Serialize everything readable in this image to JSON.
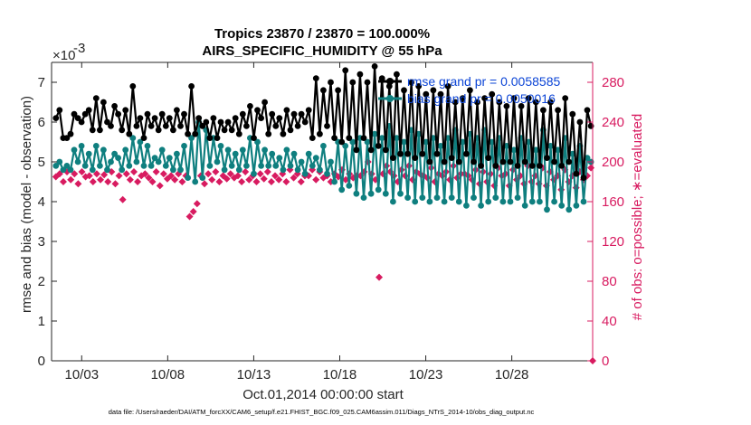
{
  "chart_data": {
    "type": "line",
    "title": "Tropics 23870 / 23870 = 100.000%",
    "subtitle": "AIRS_SPECIFIC_HUMIDITY @ 55 hPa",
    "xlabel": "Oct.01,2014 00:00:00 start",
    "ylabel": "rmse and bias (model - observation)",
    "y2label": "# of obs: o=possible; ∗=evaluated",
    "y_exponent": "×10",
    "y_exponent_power": "-3",
    "x_ticks": [
      "10/03",
      "10/08",
      "10/13",
      "10/18",
      "10/23",
      "10/28"
    ],
    "x_tick_values": [
      3,
      8,
      13,
      18,
      23,
      28
    ],
    "xlim": [
      1.25,
      32.7
    ],
    "y_ticks": [
      "0",
      "1",
      "2",
      "3",
      "4",
      "5",
      "6",
      "7"
    ],
    "ylim": [
      0,
      7.5
    ],
    "y2_ticks": [
      "0",
      "40",
      "80",
      "120",
      "160",
      "200",
      "240",
      "280"
    ],
    "y2lim": [
      0,
      300
    ],
    "grid": false,
    "legend_position": "top-right",
    "footnote": "data file: /Users/raeder/DAI/ATM_forcXX/CAM6_setup/f.e21.FHIST_BGC.f09_025.CAM6assim.011/Diags_NTrS_2014-10/obs_diag_output.nc",
    "series": [
      {
        "name": "rmse",
        "legend": "rmse grand pr = 0.0058585",
        "color": "#000000",
        "axis": "left",
        "values": [
          6.1,
          6.3,
          5.6,
          5.6,
          5.7,
          6.2,
          6.1,
          6.0,
          6.2,
          6.3,
          5.8,
          6.6,
          5.8,
          6.5,
          6.0,
          5.9,
          6.4,
          6.2,
          5.8,
          6.3,
          5.7,
          6.9,
          5.9,
          6.1,
          5.6,
          6.2,
          5.9,
          6.1,
          5.8,
          6.2,
          5.9,
          6.1,
          5.8,
          6.3,
          5.9,
          6.2,
          5.7,
          6.9,
          5.7,
          6.1,
          5.9,
          6.0,
          5.6,
          6.1,
          5.6,
          6.0,
          5.8,
          6.0,
          5.8,
          6.1,
          5.7,
          6.2,
          5.9,
          6.4,
          5.6,
          6.3,
          6.1,
          6.5,
          5.7,
          6.2,
          5.9,
          6.1,
          5.7,
          6.3,
          5.8,
          6.2,
          5.9,
          6.2,
          6.0,
          6.3,
          5.6,
          7.1,
          5.7,
          6.8,
          5.9,
          7.0,
          5.6,
          6.8,
          5.5,
          7.3,
          5.6,
          7.0,
          5.3,
          7.2,
          5.6,
          7.0,
          5.3,
          7.4,
          5.4,
          7.1,
          5.3,
          6.9,
          5.1,
          7.2,
          5.2,
          6.8,
          5.2,
          7.0,
          5.1,
          6.9,
          5.2,
          6.7,
          5.0,
          6.8,
          5.2,
          6.7,
          5.0,
          6.9,
          5.1,
          6.5,
          5.0,
          6.6,
          5.2,
          6.8,
          5.0,
          6.5,
          4.9,
          6.6,
          5.1,
          6.7,
          4.9,
          6.5,
          5.0,
          6.4,
          5.0,
          6.6,
          4.9,
          6.4,
          5.0,
          6.6,
          4.9,
          6.5,
          4.9,
          6.3,
          5.1,
          6.5,
          5.0,
          6.3,
          4.9,
          6.6,
          5.0,
          6.2,
          4.7,
          6.0,
          4.6,
          6.3,
          5.9
        ]
      },
      {
        "name": "bias",
        "legend": "bias grand pr = 0.0050016",
        "color": "#0f7f7f",
        "axis": "left",
        "values": [
          4.9,
          5.0,
          4.8,
          4.9,
          4.8,
          5.3,
          5.0,
          5.4,
          4.9,
          5.2,
          4.8,
          5.4,
          4.9,
          5.3,
          4.8,
          5.0,
          5.2,
          5.1,
          4.8,
          5.3,
          4.9,
          5.6,
          5.0,
          5.5,
          4.9,
          5.4,
          4.9,
          5.1,
          5.0,
          5.3,
          4.9,
          5.1,
          4.8,
          5.2,
          4.8,
          5.4,
          4.6,
          5.6,
          4.5,
          6.0,
          4.6,
          5.8,
          4.9,
          5.6,
          5.0,
          5.4,
          4.8,
          5.3,
          4.9,
          5.2,
          4.8,
          5.3,
          4.9,
          5.6,
          4.7,
          5.5,
          4.9,
          5.3,
          4.9,
          5.2,
          4.9,
          5.1,
          4.8,
          5.3,
          4.9,
          5.2,
          4.8,
          5.0,
          4.7,
          5.2,
          4.9,
          5.1,
          4.8,
          5.4,
          4.7,
          5.0,
          4.5,
          5.5,
          4.3,
          5.4,
          4.4,
          5.5,
          4.2,
          5.6,
          4.1,
          5.5,
          4.2,
          5.7,
          4.3,
          5.6,
          4.2,
          5.9,
          4.0,
          5.6,
          4.2,
          5.5,
          4.1,
          5.8,
          4.0,
          5.7,
          4.1,
          5.5,
          4.0,
          5.6,
          4.1,
          5.4,
          4.0,
          5.6,
          4.1,
          5.8,
          4.0,
          5.5,
          3.9,
          5.7,
          4.1,
          5.6,
          3.9,
          5.8,
          4.0,
          5.5,
          4.1,
          5.6,
          4.0,
          5.4,
          4.0,
          5.3,
          4.1,
          5.6,
          3.9,
          5.5,
          4.0,
          5.3,
          4.0,
          5.8,
          3.8,
          5.4,
          4.0,
          5.3,
          3.9,
          5.6,
          3.8,
          5.2,
          3.9,
          5.4,
          4.0,
          5.1,
          5.0
        ]
      },
      {
        "name": "# of obs (evaluated)",
        "color": "#d81b60",
        "axis": "right",
        "values": [
          185,
          188,
          180,
          190,
          182,
          188,
          178,
          190,
          185,
          186,
          180,
          188,
          182,
          187,
          180,
          190,
          178,
          186,
          162,
          188,
          182,
          190,
          180,
          186,
          188,
          184,
          180,
          190,
          176,
          188,
          183,
          186,
          182,
          188,
          180,
          186,
          145,
          150,
          158,
          186,
          178,
          188,
          182,
          190,
          180,
          186,
          183,
          188,
          184,
          186,
          180,
          190,
          182,
          186,
          180,
          188,
          183,
          190,
          180,
          186,
          182,
          188,
          180,
          192,
          184,
          188,
          180,
          186,
          186,
          192,
          182,
          190,
          184,
          186,
          180,
          188,
          185,
          192,
          182,
          188,
          184,
          186,
          186,
          190,
          200,
          188,
          182,
          84,
          188,
          196,
          190,
          186,
          180,
          192,
          186,
          196,
          182,
          190,
          188,
          186,
          184,
          194,
          180,
          188,
          186,
          190,
          182,
          196,
          184,
          188,
          188,
          186,
          182,
          192,
          178,
          190,
          180,
          188,
          176,
          194,
          186,
          188,
          176,
          192,
          182,
          186,
          178,
          196,
          180,
          186,
          178,
          194,
          176,
          190,
          182,
          186,
          172,
          192,
          180,
          186,
          174,
          190,
          182,
          186,
          194
        ]
      },
      {
        "name": "# of obs (possible)",
        "color": "#d81b60",
        "axis": "right",
        "values": [
          0
        ]
      }
    ]
  }
}
